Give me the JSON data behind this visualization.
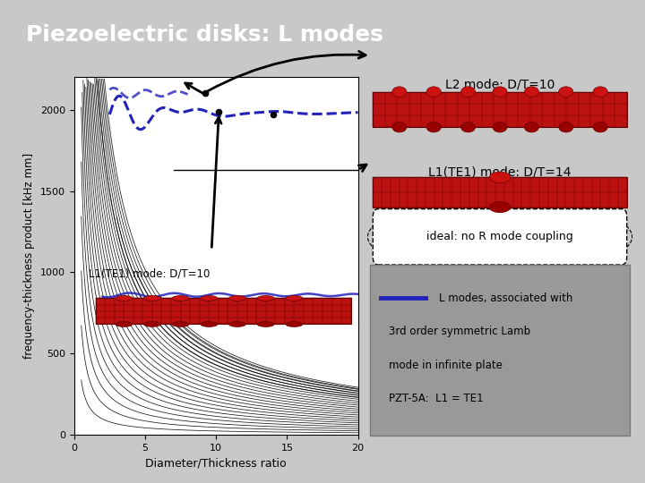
{
  "title": "Piezoelectric disks: L modes",
  "title_bg": "#4472c4",
  "title_fg": "#ffffff",
  "bg_color": "#c8c8c8",
  "xlabel": "Diameter/Thickness ratio",
  "ylabel": "frequency-thickness product [kHz mm]",
  "xlim": [
    0,
    20
  ],
  "ylim": [
    0,
    2200
  ],
  "xticks": [
    0,
    5,
    10,
    15,
    20
  ],
  "yticks": [
    0,
    500,
    1000,
    1500,
    2000
  ],
  "label_l2": "L2 mode: D/T=10",
  "label_l1_plot": "L1(TE1) mode: D/T=10",
  "label_l1_14": "L1(TE1) mode: D/T=14",
  "label_ideal": "ideal: no R mode coupling",
  "legend_text1": "L modes, associated with",
  "legend_text2": "3rd order symmetric Lamb",
  "legend_text3": "mode in infinite plate",
  "legend_text4": "PZT-5A:  L1 = TE1",
  "blue_line_color": "#2222bb",
  "red_color": "#bb1111",
  "dark_red": "#660000",
  "gray_legend_bg": "#999999"
}
